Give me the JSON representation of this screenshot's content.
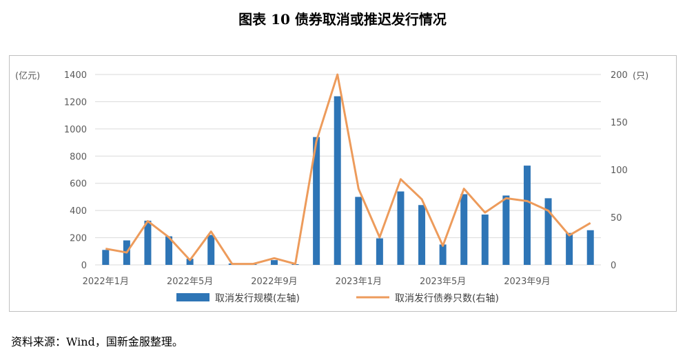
{
  "title": "图表 10  债券取消或推迟发行情况",
  "source": "资料来源：Wind，国新金服整理。",
  "colors": {
    "bar": "#2e75b6",
    "line": "#ed9b5b",
    "axis": "#d9d9d9"
  },
  "chart_data": {
    "type": "bar+line",
    "left_axis_unit": "(亿元)",
    "right_axis_unit": "(只)",
    "y_left_lim": [
      0,
      1400
    ],
    "y_left_ticks": [
      0,
      200,
      400,
      600,
      800,
      1000,
      1200,
      1400
    ],
    "y_right_lim": [
      0,
      200
    ],
    "y_right_ticks": [
      0,
      50,
      100,
      150,
      200
    ],
    "categories": [
      "2022年1月",
      "2022年2月",
      "2022年3月",
      "2022年4月",
      "2022年5月",
      "2022年6月",
      "2022年7月",
      "2022年8月",
      "2022年9月",
      "2022年10月",
      "2022年11月",
      "2022年12月",
      "2023年1月",
      "2023年2月",
      "2023年3月",
      "2023年4月",
      "2023年5月",
      "2023年6月",
      "2023年7月",
      "2023年8月",
      "2023年9月",
      "2023年10月",
      "2023年11月",
      "2023年12月"
    ],
    "x_tick_labels": [
      {
        "index": 0,
        "label": "2022年1月"
      },
      {
        "index": 4,
        "label": "2022年5月"
      },
      {
        "index": 8,
        "label": "2022年9月"
      },
      {
        "index": 12,
        "label": "2023年1月"
      },
      {
        "index": 16,
        "label": "2023年5月"
      },
      {
        "index": 20,
        "label": "2023年9月"
      }
    ],
    "series": [
      {
        "name": "取消发行规模(左轴)",
        "type": "bar",
        "axis": "left",
        "values": [
          110,
          180,
          325,
          210,
          45,
          220,
          10,
          5,
          35,
          5,
          940,
          1240,
          500,
          195,
          540,
          440,
          150,
          520,
          370,
          510,
          730,
          490,
          235,
          255
        ]
      },
      {
        "name": "取消发行债券只数(右轴)",
        "type": "line",
        "axis": "right",
        "values": [
          17,
          13,
          46,
          29,
          5,
          35,
          1,
          1,
          7,
          1,
          130,
          200,
          80,
          29,
          90,
          69,
          20,
          80,
          55,
          70,
          67,
          57,
          31,
          44
        ]
      }
    ],
    "legend_position": "bottom",
    "grid": true
  }
}
